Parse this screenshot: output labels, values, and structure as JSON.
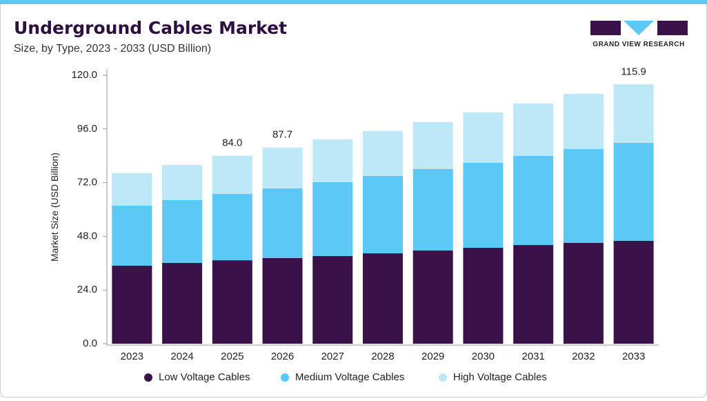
{
  "chart_data": {
    "type": "stacked_bar",
    "title": "Underground Cables Market",
    "subtitle": "Size, by Type, 2023 - 2033 (USD Billion)",
    "logo_text": "GRAND VIEW RESEARCH",
    "y_label": "Market Size (USD Billion)",
    "categories": [
      "2023",
      "2024",
      "2025",
      "2026",
      "2027",
      "2028",
      "2029",
      "2030",
      "2031",
      "2032",
      "2033"
    ],
    "series": [
      {
        "name": "Low Voltage Cables",
        "color": "#3a1149",
        "values": [
          34.9,
          36.1,
          37.3,
          38.3,
          39.2,
          40.4,
          41.7,
          42.9,
          44.1,
          45.1,
          46.0
        ]
      },
      {
        "name": "Medium Voltage Cables",
        "color": "#5bc8f5",
        "values": [
          26.8,
          28.1,
          29.7,
          31.1,
          33.0,
          34.6,
          36.4,
          38.0,
          39.9,
          41.9,
          43.8
        ]
      },
      {
        "name": "High Voltage Cables",
        "color": "#bde8f8",
        "values": [
          14.5,
          15.7,
          17.0,
          18.3,
          19.2,
          20.1,
          21.0,
          22.5,
          23.4,
          24.7,
          26.1
        ]
      }
    ],
    "annotations": [
      {
        "x": "2025",
        "label": "84.0"
      },
      {
        "x": "2026",
        "label": "87.7"
      },
      {
        "x": "2033",
        "label": "115.9"
      }
    ],
    "ylim": [
      0,
      120
    ],
    "yticks": [
      {
        "value": 0,
        "label": "0.0"
      },
      {
        "value": 24,
        "label": "24.0"
      },
      {
        "value": 48,
        "label": "48.0"
      },
      {
        "value": 72,
        "label": "72.0"
      },
      {
        "value": 96,
        "label": "96.0"
      },
      {
        "value": 120,
        "label": "120.0"
      }
    ],
    "grid": false,
    "legend": "bottom"
  }
}
